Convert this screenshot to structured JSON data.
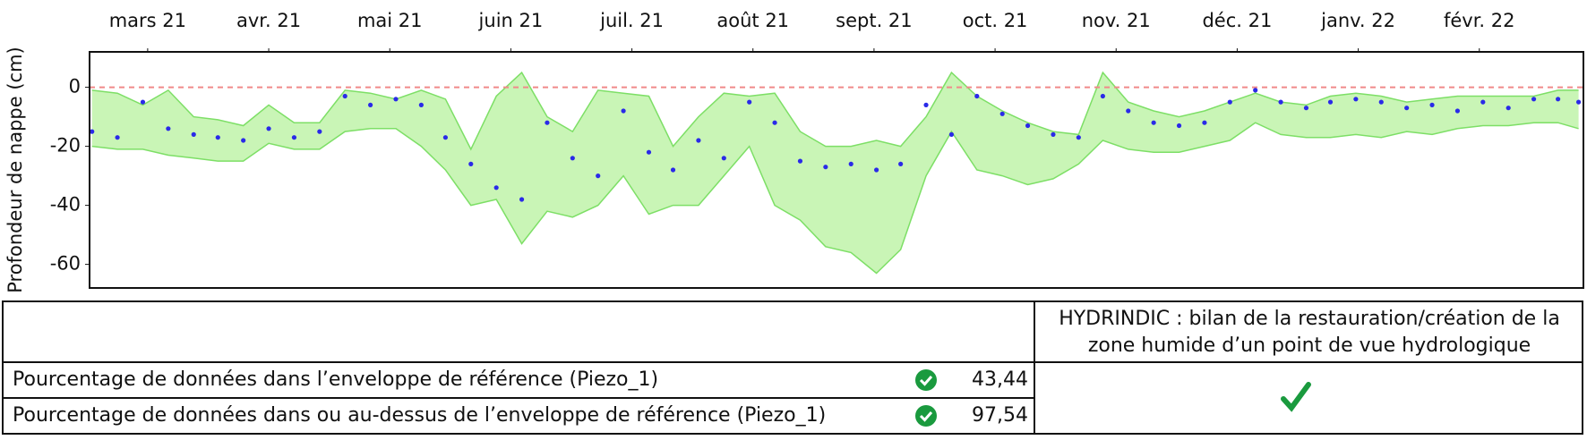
{
  "chart_data": {
    "type": "scatter-band",
    "y_label": "Profondeur de nappe (cm)",
    "xlim": [
      -0.48,
      11.86
    ],
    "xticks": [
      {
        "value": 0,
        "label": "mars 21"
      },
      {
        "value": 1,
        "label": "avr. 21"
      },
      {
        "value": 2,
        "label": "mai 21"
      },
      {
        "value": 3,
        "label": "juin 21"
      },
      {
        "value": 4,
        "label": "juil. 21"
      },
      {
        "value": 5,
        "label": "août 21"
      },
      {
        "value": 6,
        "label": "sept. 21"
      },
      {
        "value": 7,
        "label": "oct. 21"
      },
      {
        "value": 8,
        "label": "nov. 21"
      },
      {
        "value": 9,
        "label": "déc. 21"
      },
      {
        "value": 10,
        "label": "janv. 22"
      },
      {
        "value": 11,
        "label": "févr. 22"
      }
    ],
    "ylim": [
      -68,
      12
    ],
    "yticks": [
      0,
      -20,
      -40,
      -60
    ],
    "hline": {
      "value": 0,
      "color": "#f08a8a"
    },
    "color": "#2a2ae8",
    "band_color": "#c9f5b6",
    "band_edge": "#7ddf66",
    "x": [
      -0.46,
      -0.25,
      -0.04,
      0.17,
      0.38,
      0.58,
      0.79,
      1.0,
      1.21,
      1.42,
      1.63,
      1.84,
      2.05,
      2.26,
      2.46,
      2.67,
      2.88,
      3.09,
      3.3,
      3.51,
      3.72,
      3.93,
      4.14,
      4.34,
      4.55,
      4.76,
      4.97,
      5.18,
      5.39,
      5.6,
      5.81,
      6.02,
      6.22,
      6.43,
      6.64,
      6.85,
      7.06,
      7.27,
      7.48,
      7.69,
      7.89,
      8.1,
      8.31,
      8.52,
      8.73,
      8.94,
      9.15,
      9.36,
      9.57,
      9.77,
      9.98,
      10.19,
      10.4,
      10.61,
      10.82,
      11.03,
      11.24,
      11.45,
      11.65,
      11.82
    ],
    "values": [
      -15,
      -17,
      -5,
      -14,
      -16,
      -17,
      -18,
      -14,
      -17,
      -15,
      -3,
      -6,
      -4,
      -6,
      -17,
      -26,
      -34,
      -38,
      -12,
      -24,
      -30,
      -8,
      -22,
      -28,
      -18,
      -24,
      -5,
      -12,
      -25,
      -27,
      -26,
      -28,
      -26,
      -6,
      -16,
      -3,
      -9,
      -13,
      -16,
      -17,
      -3,
      -8,
      -12,
      -13,
      -12,
      -5,
      -1,
      -5,
      -7,
      -5,
      -4,
      -5,
      -7,
      -6,
      -8,
      -5,
      -7,
      -4,
      -4,
      -5
    ],
    "band": {
      "upper": [
        -1,
        -2,
        -6,
        -1,
        -10,
        -11,
        -13,
        -6,
        -12,
        -12,
        -1,
        -2,
        -4,
        -1,
        -4,
        -21,
        -3,
        5,
        -10,
        -15,
        -1,
        -2,
        -3,
        -20,
        -10,
        -2,
        -3,
        -2,
        -15,
        -20,
        -20,
        -18,
        -20,
        -10,
        5,
        -3,
        -8,
        -12,
        -15,
        -16,
        5,
        -5,
        -8,
        -10,
        -8,
        -5,
        -2,
        -5,
        -6,
        -3,
        -2,
        -3,
        -5,
        -4,
        -3,
        -3,
        -3,
        -3,
        -1,
        -1
      ],
      "lower": [
        -20,
        -21,
        -21,
        -23,
        -24,
        -25,
        -25,
        -19,
        -21,
        -21,
        -15,
        -14,
        -14,
        -20,
        -28,
        -40,
        -38,
        -53,
        -42,
        -44,
        -40,
        -30,
        -43,
        -40,
        -40,
        -30,
        -20,
        -40,
        -45,
        -54,
        -56,
        -63,
        -55,
        -30,
        -15,
        -28,
        -30,
        -33,
        -31,
        -26,
        -18,
        -21,
        -22,
        -22,
        -20,
        -18,
        -12,
        -16,
        -17,
        -17,
        -16,
        -17,
        -15,
        -16,
        -14,
        -13,
        -13,
        -12,
        -12,
        -14
      ]
    }
  },
  "table": {
    "header": [
      "HYDRINDIC : bilan de la restauration/création de la",
      "zone humide d’un point de vue hydrologique"
    ],
    "rows": [
      [
        "Pourcentage de données dans l’enveloppe de référence (Piezo_1)",
        "43,44"
      ],
      [
        "Pourcentage de données dans ou au-dessus de l’enveloppe de référence (Piezo_1)",
        "97,54"
      ]
    ]
  }
}
